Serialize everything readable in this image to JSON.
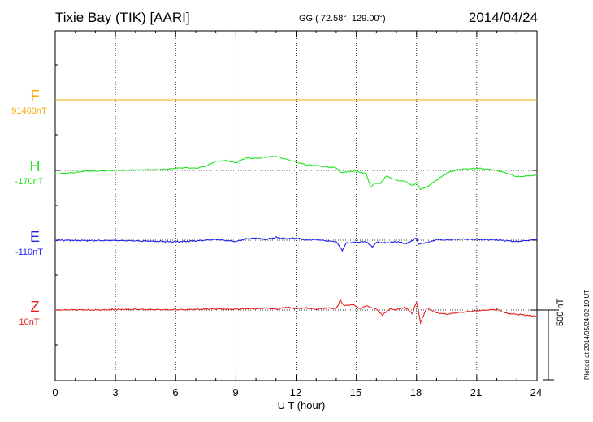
{
  "header": {
    "station": "Tixie Bay (TIK)  [AARI]",
    "coords": "GG ( 72.58°, 129.00°)",
    "date": "2014/04/24"
  },
  "footer": {
    "plotted": "Plotted at 2014/05/24 02:19 UT"
  },
  "chart_data": {
    "type": "line",
    "title": "Tixie Bay (TIK)  [AARI]",
    "xlabel": "U T (hour)",
    "ylabel": "",
    "xlim": [
      0,
      24
    ],
    "x_ticks": [
      "0",
      "3",
      "6",
      "9",
      "12",
      "15",
      "18",
      "21",
      "24"
    ],
    "scale_bar": "500 nT",
    "scale_bar_nT": 500,
    "grid": true,
    "series": [
      {
        "name": "F",
        "baseline_label": "91460nT",
        "color": "#f5a800",
        "x": [
          0,
          24
        ],
        "values": [
          0,
          0
        ]
      },
      {
        "name": "H",
        "baseline_label": "-170nT",
        "color": "#1ee61e",
        "x": [
          0,
          0.5,
          1,
          1.5,
          2,
          3,
          4,
          5,
          5.5,
          6,
          6.5,
          7,
          7.5,
          8,
          8.5,
          9,
          9.5,
          10,
          10.5,
          11,
          11.5,
          12,
          12.5,
          13,
          13.5,
          14,
          14.2,
          14.5,
          15,
          15.5,
          15.7,
          15.9,
          16.2,
          16.5,
          17,
          17.5,
          17.8,
          18,
          18.2,
          18.5,
          19,
          19.5,
          20,
          20.5,
          21,
          21.5,
          22,
          22.5,
          23,
          23.5,
          24
        ],
        "values": [
          -25,
          -20,
          -15,
          -5,
          -5,
          0,
          3,
          5,
          8,
          15,
          20,
          15,
          30,
          65,
          70,
          55,
          90,
          85,
          95,
          100,
          80,
          60,
          40,
          35,
          25,
          20,
          -15,
          -10,
          -5,
          -25,
          -120,
          -95,
          -90,
          -40,
          -70,
          -80,
          -110,
          -85,
          -135,
          -120,
          -70,
          -20,
          5,
          10,
          15,
          10,
          0,
          -20,
          -45,
          -40,
          -35
        ]
      },
      {
        "name": "E",
        "baseline_label": "-110nT",
        "color": "#1e1ee6",
        "x": [
          0,
          1,
          2,
          3,
          4,
          5,
          6,
          7,
          8,
          9,
          9.5,
          10,
          10.5,
          11,
          11.5,
          12,
          12.5,
          13,
          13.5,
          14,
          14.3,
          14.5,
          15,
          15.5,
          15.8,
          16,
          16.5,
          17,
          17.5,
          18,
          18.1,
          18.3,
          18.6,
          19,
          19.5,
          20,
          21,
          22,
          23,
          24
        ],
        "values": [
          0,
          -2,
          -3,
          -2,
          -5,
          -8,
          -12,
          -5,
          5,
          -10,
          10,
          15,
          5,
          20,
          10,
          15,
          0,
          5,
          -5,
          -10,
          -75,
          -20,
          -15,
          -10,
          -50,
          -15,
          -20,
          -10,
          -25,
          15,
          -30,
          -20,
          -15,
          5,
          0,
          8,
          5,
          2,
          -10,
          5
        ]
      },
      {
        "name": "Z",
        "baseline_label": "10nT",
        "color": "#e61e1e",
        "x": [
          0,
          1,
          2,
          3,
          4,
          5,
          6,
          7,
          8,
          9,
          9.5,
          10,
          10.5,
          11,
          11.5,
          12,
          12.5,
          13,
          13.5,
          14,
          14.2,
          14.4,
          14.8,
          15.2,
          15.5,
          16,
          16.3,
          16.7,
          17,
          17.4,
          17.8,
          18,
          18.2,
          18.5,
          19,
          19.5,
          20,
          21,
          22,
          22.5,
          23,
          24
        ],
        "values": [
          0,
          2,
          0,
          4,
          5,
          3,
          2,
          5,
          8,
          5,
          10,
          8,
          15,
          5,
          20,
          10,
          15,
          5,
          15,
          10,
          70,
          30,
          40,
          10,
          30,
          5,
          -35,
          10,
          0,
          20,
          -25,
          60,
          -90,
          15,
          -20,
          -30,
          -20,
          -5,
          5,
          -25,
          -30,
          -45
        ]
      }
    ]
  }
}
